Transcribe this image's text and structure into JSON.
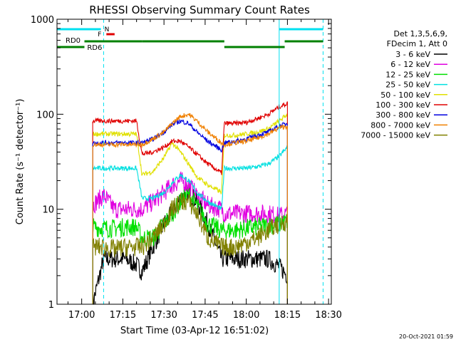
{
  "chart_data": {
    "type": "line",
    "title": "RHESSI Observing Summary Count Rates",
    "xlabel": "Start Time (03-Apr-12 16:51:02)",
    "ylabel": "Count Rate (s⁻¹ detector⁻¹)",
    "y_scale": "log",
    "ylim": [
      1,
      1000
    ],
    "y_ticks": [
      {
        "value": 1,
        "label": "1"
      },
      {
        "value": 10,
        "label": "10"
      },
      {
        "value": 100,
        "label": "100"
      },
      {
        "value": 1000,
        "label": "1000"
      }
    ],
    "xlim": [
      "16:51",
      "18:31"
    ],
    "x_ticks": [
      "17:00",
      "17:15",
      "17:30",
      "17:45",
      "18:00",
      "18:15",
      "18:30"
    ],
    "grid": false,
    "legend_position": "right",
    "legend_header": [
      "Det 1,3,5,6,9,",
      "FDecim 1, Att 0"
    ],
    "footer": "20-Oct-2021 01:59",
    "annotations": {
      "night_bar_label": "N",
      "flare_label": "F",
      "rd_labels": [
        "RD0",
        "RD6"
      ],
      "night_bar": [
        [
          "16:51",
          "17:07"
        ],
        [
          "18:12",
          "18:28"
        ]
      ],
      "flare": [
        "17:09",
        "17:12"
      ],
      "rd_bars": [
        [
          "16:51",
          "17:22"
        ],
        [
          "17:22",
          "17:52"
        ],
        [
          "17:52",
          "18:14"
        ],
        [
          "18:14",
          "18:28"
        ]
      ],
      "cyan_lines_solid": [
        "16:51",
        "18:12"
      ],
      "cyan_lines_dashed": [
        "17:08",
        "18:28"
      ]
    },
    "data_gaps": [
      [
        "16:51",
        "17:04"
      ],
      [
        "18:15",
        "18:31"
      ]
    ],
    "x": [
      "17:04",
      "17:08",
      "17:12",
      "17:16",
      "17:20",
      "17:22",
      "17:26",
      "17:30",
      "17:33",
      "17:36",
      "17:39",
      "17:42",
      "17:46",
      "17:51",
      "17:52",
      "17:56",
      "18:00",
      "18:04",
      "18:08",
      "18:12",
      "18:15"
    ],
    "series": [
      {
        "name": "3 - 6 keV",
        "color": "#000000",
        "values": [
          1,
          3,
          3,
          3,
          2.6,
          2.2,
          4,
          7,
          9,
          13,
          15,
          12,
          7,
          3,
          3,
          3,
          3,
          3,
          3,
          2.5,
          2
        ]
      },
      {
        "name": "6 - 12 keV",
        "color": "#e000e0",
        "values": [
          11,
          14,
          10,
          10,
          10,
          10,
          12,
          15,
          18,
          20,
          18,
          14,
          11,
          10,
          9,
          9,
          9,
          9,
          9,
          8.5,
          9
        ]
      },
      {
        "name": "12 - 25 keV",
        "color": "#00e000",
        "values": [
          6.5,
          6.3,
          6.3,
          6.5,
          6.5,
          5,
          5,
          7,
          9,
          12,
          14,
          11,
          7,
          6,
          6,
          6,
          6.3,
          6.5,
          6.8,
          7,
          7.5
        ]
      },
      {
        "name": "25 - 50 keV",
        "color": "#00e0e0",
        "values": [
          27,
          27,
          27,
          27,
          27,
          13,
          13,
          15,
          19,
          23,
          20,
          15,
          12,
          10,
          27,
          27,
          27,
          28,
          30,
          36,
          45
        ]
      },
      {
        "name": "50 - 100 keV",
        "color": "#e0e000",
        "values": [
          62,
          62,
          62,
          62,
          62,
          23,
          25,
          35,
          50,
          40,
          30,
          22,
          18,
          15,
          60,
          60,
          62,
          65,
          70,
          85,
          100
        ]
      },
      {
        "name": "100 - 300 keV",
        "color": "#e00000",
        "values": [
          85,
          85,
          85,
          85,
          85,
          38,
          40,
          45,
          52,
          52,
          45,
          38,
          30,
          24,
          80,
          80,
          82,
          90,
          100,
          120,
          130
        ]
      },
      {
        "name": "300 - 800 keV",
        "color": "#0000e0",
        "values": [
          50,
          50,
          50,
          50,
          50,
          50,
          55,
          65,
          78,
          85,
          80,
          65,
          52,
          42,
          50,
          52,
          55,
          60,
          65,
          75,
          80
        ]
      },
      {
        "name": "800 - 7000 keV",
        "color": "#f08000",
        "values": [
          48,
          48,
          48,
          48,
          48,
          48,
          55,
          65,
          80,
          95,
          100,
          85,
          65,
          50,
          48,
          50,
          52,
          56,
          62,
          72,
          75
        ]
      },
      {
        "name": "7000 - 15000 keV",
        "color": "#808000",
        "values": [
          4,
          4,
          3.8,
          4,
          4,
          4,
          5,
          7,
          10,
          12,
          12,
          9,
          5,
          4,
          4,
          4,
          4.5,
          5,
          6,
          7,
          7.5
        ]
      }
    ]
  }
}
